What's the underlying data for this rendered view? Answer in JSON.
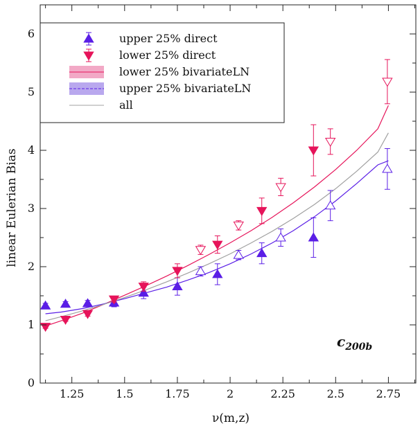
{
  "chart_data": {
    "type": "scatter",
    "xlabel": "ν(m,z)",
    "ylabel": "linear Eulerian Bias",
    "xlim": [
      1.1,
      2.88
    ],
    "ylim": [
      0,
      6.5
    ],
    "x_ticks": [
      1.25,
      1.5,
      1.75,
      2,
      2.25,
      2.5,
      2.75
    ],
    "x_tick_labels": [
      "1.25",
      "1.5",
      "1.75",
      "2",
      "2.25",
      "2.5",
      "2.75"
    ],
    "y_ticks": [
      0,
      1,
      2,
      3,
      4,
      5,
      6
    ],
    "y_tick_labels": [
      "0",
      "1",
      "2",
      "3",
      "4",
      "5",
      "6"
    ],
    "annotation": "c",
    "annotation_sub": "200b",
    "legend_position": "top-left",
    "colors": {
      "upper": "#5a1ee6",
      "lower": "#e6145a",
      "all": "#a0a0a0",
      "upper_band": "#b9a8ee",
      "lower_band": "#f2a9c6"
    },
    "legend": [
      {
        "key": "upper_direct",
        "label": "upper 25% direct"
      },
      {
        "key": "lower_direct",
        "label": "lower 25% direct"
      },
      {
        "key": "lower_bivariate",
        "label": "lower 25% bivariateLN"
      },
      {
        "key": "upper_bivariate",
        "label": "upper 25% bivariateLN"
      },
      {
        "key": "all",
        "label": "all"
      }
    ],
    "series": [
      {
        "name": "upper 25% direct",
        "marker": "triangle-up",
        "points": [
          {
            "x": 1.125,
            "y": 1.33,
            "err": 0.04,
            "filled": true
          },
          {
            "x": 1.22,
            "y": 1.36,
            "err": 0.04,
            "filled": true
          },
          {
            "x": 1.325,
            "y": 1.37,
            "err": 0.05,
            "filled": true
          },
          {
            "x": 1.45,
            "y": 1.38,
            "err": 0.07,
            "filled": true
          },
          {
            "x": 1.59,
            "y": 1.55,
            "err": 0.1,
            "filled": true
          },
          {
            "x": 1.75,
            "y": 1.66,
            "err": 0.15,
            "filled": true
          },
          {
            "x": 1.86,
            "y": 1.92,
            "err": 0.08,
            "filled": false
          },
          {
            "x": 1.94,
            "y": 1.87,
            "err": 0.18,
            "filled": true
          },
          {
            "x": 2.04,
            "y": 2.2,
            "err": 0.08,
            "filled": false
          },
          {
            "x": 2.15,
            "y": 2.23,
            "err": 0.18,
            "filled": true
          },
          {
            "x": 2.24,
            "y": 2.5,
            "err": 0.15,
            "filled": false
          },
          {
            "x": 2.395,
            "y": 2.5,
            "err": 0.34,
            "filled": true
          },
          {
            "x": 2.475,
            "y": 3.05,
            "err": 0.26,
            "filled": false
          },
          {
            "x": 2.745,
            "y": 3.68,
            "err": 0.35,
            "filled": false
          }
        ]
      },
      {
        "name": "lower 25% direct",
        "marker": "triangle-down",
        "points": [
          {
            "x": 1.125,
            "y": 0.97,
            "err": 0.03,
            "filled": true
          },
          {
            "x": 1.22,
            "y": 1.09,
            "err": 0.03,
            "filled": true
          },
          {
            "x": 1.325,
            "y": 1.19,
            "err": 0.04,
            "filled": true
          },
          {
            "x": 1.45,
            "y": 1.44,
            "err": 0.05,
            "filled": true
          },
          {
            "x": 1.59,
            "y": 1.66,
            "err": 0.08,
            "filled": true
          },
          {
            "x": 1.75,
            "y": 1.93,
            "err": 0.12,
            "filled": true
          },
          {
            "x": 1.86,
            "y": 2.29,
            "err": 0.08,
            "filled": false
          },
          {
            "x": 1.94,
            "y": 2.38,
            "err": 0.15,
            "filled": true
          },
          {
            "x": 2.04,
            "y": 2.71,
            "err": 0.08,
            "filled": false
          },
          {
            "x": 2.15,
            "y": 2.96,
            "err": 0.22,
            "filled": true
          },
          {
            "x": 2.24,
            "y": 3.37,
            "err": 0.15,
            "filled": false
          },
          {
            "x": 2.395,
            "y": 4.0,
            "err": 0.44,
            "filled": true
          },
          {
            "x": 2.475,
            "y": 4.15,
            "err": 0.22,
            "filled": false
          },
          {
            "x": 2.745,
            "y": 5.18,
            "err": 0.38,
            "filled": false
          }
        ]
      },
      {
        "name": "lower 25% bivariateLN",
        "type": "line",
        "x": [
          1.125,
          1.2,
          1.3,
          1.4,
          1.5,
          1.6,
          1.7,
          1.8,
          1.9,
          2.0,
          2.1,
          2.2,
          2.3,
          2.4,
          2.5,
          2.6,
          2.7,
          2.75
        ],
        "y": [
          0.98,
          1.07,
          1.2,
          1.35,
          1.51,
          1.67,
          1.84,
          2.02,
          2.21,
          2.41,
          2.62,
          2.85,
          3.1,
          3.37,
          3.67,
          4.0,
          4.37,
          4.77
        ]
      },
      {
        "name": "upper 25% bivariateLN",
        "type": "line",
        "x": [
          1.125,
          1.2,
          1.3,
          1.4,
          1.5,
          1.6,
          1.7,
          1.8,
          1.9,
          2.0,
          2.1,
          2.2,
          2.3,
          2.4,
          2.5,
          2.6,
          2.7,
          2.75
        ],
        "y": [
          1.19,
          1.22,
          1.28,
          1.36,
          1.45,
          1.55,
          1.65,
          1.77,
          1.9,
          2.05,
          2.22,
          2.41,
          2.62,
          2.86,
          3.13,
          3.43,
          3.75,
          3.82
        ]
      },
      {
        "name": "all",
        "type": "line",
        "x": [
          1.125,
          1.2,
          1.3,
          1.4,
          1.5,
          1.6,
          1.7,
          1.8,
          1.9,
          2.0,
          2.1,
          2.2,
          2.3,
          2.4,
          2.5,
          2.6,
          2.7,
          2.75
        ],
        "y": [
          1.07,
          1.14,
          1.24,
          1.35,
          1.47,
          1.6,
          1.74,
          1.89,
          2.05,
          2.22,
          2.41,
          2.61,
          2.83,
          3.07,
          3.34,
          3.64,
          3.97,
          4.3
        ]
      }
    ]
  }
}
